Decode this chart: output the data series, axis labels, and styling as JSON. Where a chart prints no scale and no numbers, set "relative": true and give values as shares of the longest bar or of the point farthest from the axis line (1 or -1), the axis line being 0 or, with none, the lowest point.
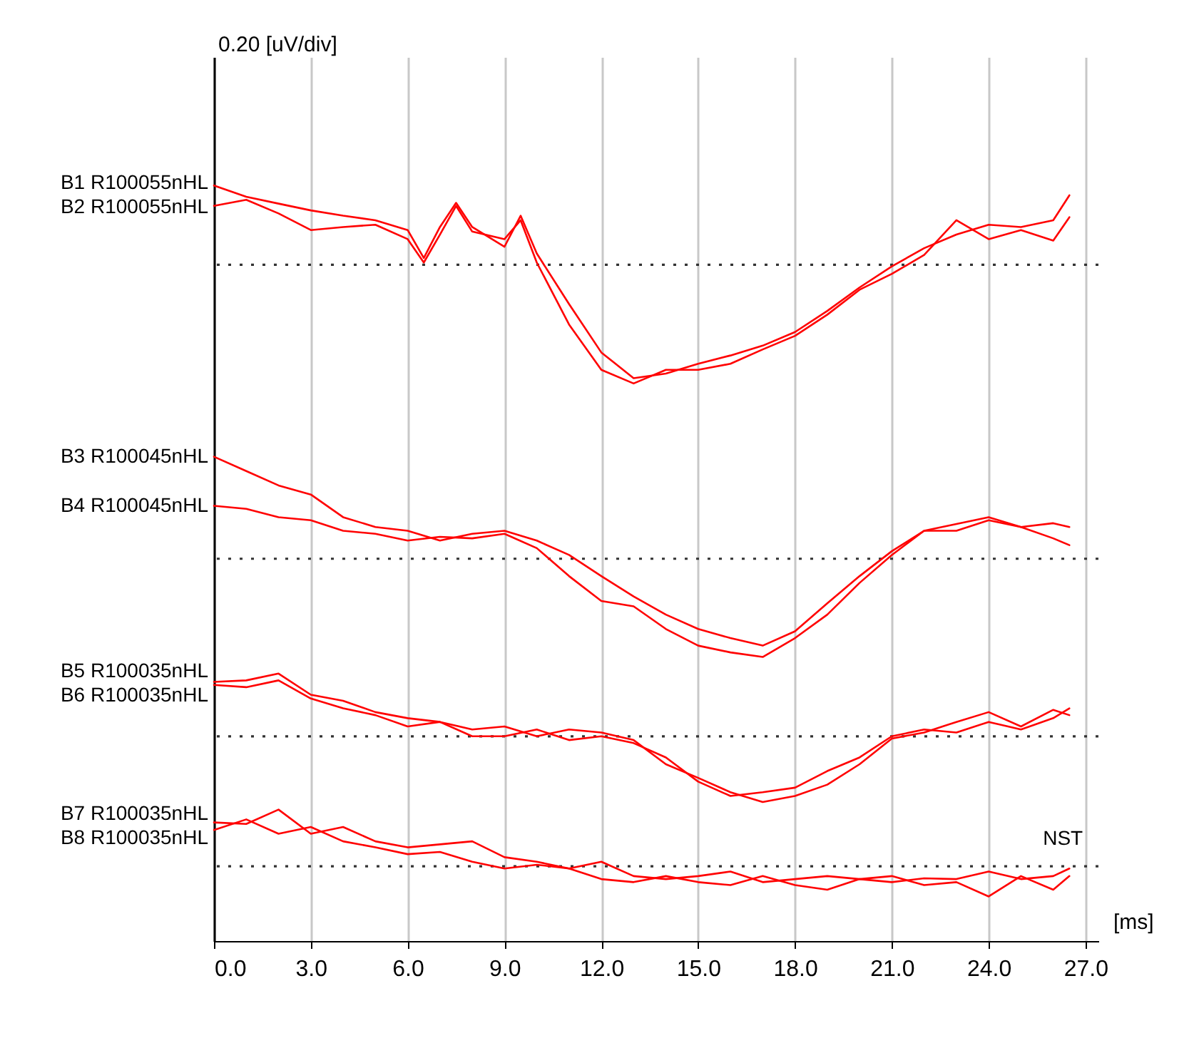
{
  "chart_data": {
    "type": "line",
    "relative": true,
    "xlabel": "[ms]",
    "xlim": [
      0,
      27.4
    ],
    "xticks": [
      {
        "value": 0,
        "label": "0.0"
      },
      {
        "value": 3,
        "label": "3.0"
      },
      {
        "value": 6,
        "label": "6.0"
      },
      {
        "value": 9,
        "label": "9.0"
      },
      {
        "value": 12,
        "label": "12.0"
      },
      {
        "value": 15,
        "label": "15.0"
      },
      {
        "value": 18,
        "label": "18.0"
      },
      {
        "value": 21,
        "label": "21.0"
      },
      {
        "value": 24,
        "label": "24.0"
      },
      {
        "value": 27,
        "label": "27.0"
      }
    ],
    "grid": "x",
    "line_style": "solid",
    "series": [
      {
        "name": "B1 R100055nHL",
        "color": "#ff0000",
        "x": [
          0,
          1,
          2,
          3,
          4,
          5,
          6,
          6.5,
          7,
          7.5,
          8,
          9,
          9.5,
          10,
          11,
          12,
          13,
          14,
          15,
          16,
          17,
          18,
          19,
          20,
          21,
          22,
          23,
          24,
          25,
          26,
          26.5
        ],
        "values": [
          1.0,
          0.985,
          0.976,
          0.967,
          0.96,
          0.954,
          0.941,
          0.904,
          0.945,
          0.977,
          0.945,
          0.919,
          0.96,
          0.91,
          0.843,
          0.779,
          0.745,
          0.751,
          0.764,
          0.775,
          0.788,
          0.806,
          0.834,
          0.865,
          0.893,
          0.917,
          0.935,
          0.948,
          0.945,
          0.954,
          0.987
        ]
      },
      {
        "name": "B2 R100055nHL",
        "color": "#ff0000",
        "x": [
          0,
          1,
          2,
          3,
          4,
          5,
          6,
          6.5,
          7,
          7.5,
          8,
          9,
          9.5,
          10,
          11,
          12,
          13,
          14,
          15,
          16,
          17,
          18,
          19,
          20,
          21,
          22,
          23,
          24,
          25,
          26,
          26.5
        ],
        "values": [
          0.973,
          0.981,
          0.963,
          0.941,
          0.945,
          0.948,
          0.929,
          0.898,
          0.935,
          0.973,
          0.939,
          0.929,
          0.954,
          0.898,
          0.816,
          0.756,
          0.738,
          0.756,
          0.756,
          0.764,
          0.783,
          0.801,
          0.829,
          0.862,
          0.883,
          0.908,
          0.954,
          0.929,
          0.941,
          0.927,
          0.958
        ]
      },
      {
        "name": "B3 R100045nHL",
        "color": "#ff0000",
        "x": [
          0,
          1,
          2,
          3,
          4,
          5,
          6,
          7,
          8,
          9,
          10,
          11,
          12,
          13,
          14,
          15,
          16,
          17,
          18,
          19,
          20,
          21,
          22,
          23,
          24,
          25,
          26,
          26.5
        ],
        "values": [
          0.641,
          0.622,
          0.603,
          0.591,
          0.561,
          0.548,
          0.543,
          0.53,
          0.539,
          0.543,
          0.53,
          0.511,
          0.483,
          0.456,
          0.432,
          0.413,
          0.401,
          0.391,
          0.41,
          0.447,
          0.483,
          0.516,
          0.543,
          0.552,
          0.561,
          0.548,
          0.553,
          0.548
        ]
      },
      {
        "name": "B4 R100045nHL",
        "color": "#ff0000",
        "x": [
          0,
          1,
          2,
          3,
          4,
          5,
          6,
          7,
          8,
          9,
          10,
          11,
          12,
          13,
          14,
          15,
          16,
          17,
          18,
          19,
          20,
          21,
          22,
          23,
          24,
          25,
          26,
          26.5
        ],
        "values": [
          0.576,
          0.572,
          0.561,
          0.557,
          0.543,
          0.539,
          0.53,
          0.535,
          0.533,
          0.539,
          0.52,
          0.483,
          0.45,
          0.443,
          0.413,
          0.391,
          0.382,
          0.376,
          0.401,
          0.432,
          0.474,
          0.511,
          0.543,
          0.543,
          0.557,
          0.548,
          0.533,
          0.524
        ]
      },
      {
        "name": "B5 R100035nHL",
        "color": "#ff0000",
        "x": [
          0,
          1,
          2,
          3,
          4,
          5,
          6,
          7,
          8,
          9,
          10,
          11,
          12,
          13,
          14,
          15,
          16,
          17,
          18,
          19,
          20,
          21,
          22,
          23,
          24,
          25,
          26,
          26.5
        ],
        "values": [
          0.343,
          0.345,
          0.354,
          0.326,
          0.318,
          0.303,
          0.295,
          0.29,
          0.28,
          0.284,
          0.271,
          0.28,
          0.276,
          0.266,
          0.234,
          0.216,
          0.197,
          0.184,
          0.192,
          0.207,
          0.234,
          0.268,
          0.276,
          0.29,
          0.303,
          0.284,
          0.306,
          0.299
        ]
      },
      {
        "name": "B6 R100035nHL",
        "color": "#ff0000",
        "x": [
          0,
          1,
          2,
          3,
          4,
          5,
          6,
          7,
          8,
          9,
          10,
          11,
          12,
          13,
          14,
          15,
          16,
          17,
          18,
          19,
          20,
          21,
          22,
          23,
          24,
          25,
          26,
          26.5
        ],
        "values": [
          0.339,
          0.336,
          0.345,
          0.321,
          0.308,
          0.299,
          0.284,
          0.29,
          0.271,
          0.271,
          0.28,
          0.266,
          0.271,
          0.262,
          0.243,
          0.211,
          0.192,
          0.197,
          0.203,
          0.225,
          0.243,
          0.271,
          0.28,
          0.276,
          0.29,
          0.28,
          0.295,
          0.308
        ]
      },
      {
        "name": "B7 R100035nHL",
        "color": "#ff0000",
        "x": [
          0,
          1,
          2,
          3,
          4,
          5,
          6,
          7,
          8,
          9,
          10,
          11,
          12,
          13,
          14,
          15,
          16,
          17,
          18,
          19,
          20,
          21,
          22,
          23,
          24,
          25,
          26,
          26.5
        ],
        "values": [
          0.157,
          0.155,
          0.174,
          0.142,
          0.151,
          0.132,
          0.124,
          0.128,
          0.132,
          0.111,
          0.105,
          0.096,
          0.105,
          0.086,
          0.082,
          0.086,
          0.092,
          0.078,
          0.082,
          0.086,
          0.082,
          0.078,
          0.083,
          0.082,
          0.092,
          0.082,
          0.086,
          0.096
        ]
      },
      {
        "name": "B8 R100035nHL",
        "color": "#ff0000",
        "x": [
          0,
          1,
          2,
          3,
          4,
          5,
          6,
          7,
          8,
          9,
          10,
          11,
          12,
          13,
          14,
          15,
          16,
          17,
          18,
          19,
          20,
          21,
          22,
          23,
          24,
          25,
          26,
          26.5
        ],
        "values": [
          0.147,
          0.161,
          0.142,
          0.151,
          0.132,
          0.124,
          0.115,
          0.118,
          0.105,
          0.096,
          0.101,
          0.096,
          0.082,
          0.078,
          0.086,
          0.078,
          0.074,
          0.086,
          0.074,
          0.068,
          0.082,
          0.086,
          0.074,
          0.078,
          0.059,
          0.086,
          0.068,
          0.086
        ]
      }
    ],
    "ref_lines": [
      {
        "axis": "y",
        "value": 0.895,
        "color": "#333333",
        "line_style": "dotted"
      },
      {
        "axis": "y",
        "value": 0.506,
        "color": "#333333",
        "line_style": "dotted"
      },
      {
        "axis": "y",
        "value": 0.271,
        "color": "#333333",
        "line_style": "dotted"
      },
      {
        "axis": "y",
        "value": 0.099,
        "color": "#333333",
        "line_style": "dotted"
      }
    ],
    "annotations": [
      "0.20 [uV/div]",
      {
        "text": "NST",
        "x": 26.3,
        "y": 0.099
      }
    ]
  }
}
